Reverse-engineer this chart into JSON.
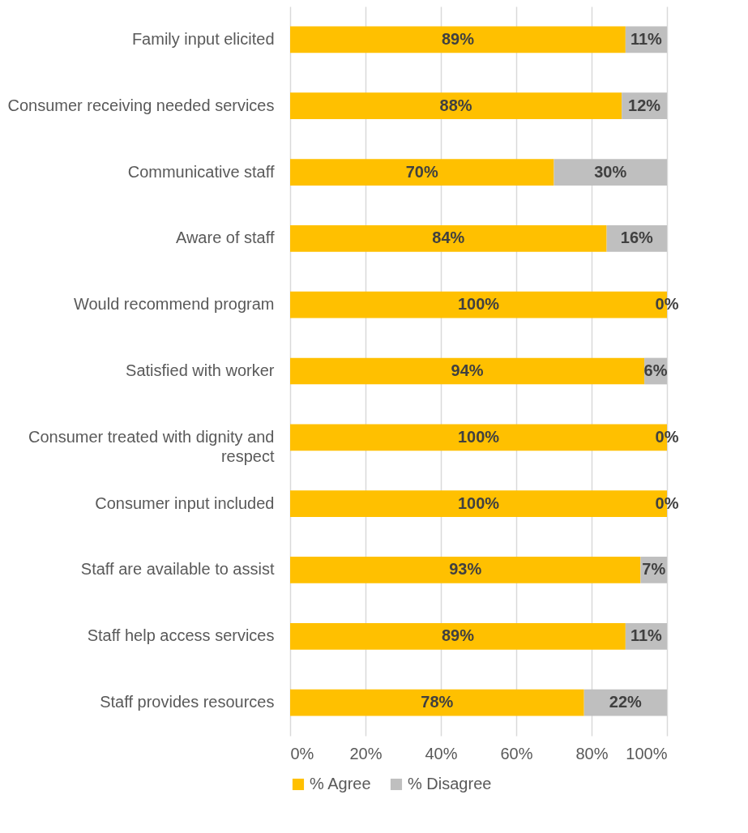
{
  "chart_data": {
    "type": "bar",
    "orientation": "horizontal",
    "stacked": true,
    "categories": [
      "Family input elicited",
      "Consumer receiving needed services",
      "Communicative staff",
      "Aware of staff",
      "Would recommend program",
      "Satisfied with worker",
      "Consumer treated with dignity and respect",
      "Consumer input included",
      "Staff are available to assist",
      "Staff help access services",
      "Staff provides resources"
    ],
    "series": [
      {
        "name": "% Agree",
        "color": "#ffc000",
        "values": [
          89,
          88,
          70,
          84,
          100,
          94,
          100,
          100,
          93,
          89,
          78
        ],
        "value_labels": [
          "89%",
          "88%",
          "70%",
          "84%",
          "100%",
          "94%",
          "100%",
          "100%",
          "93%",
          "89%",
          "78%"
        ]
      },
      {
        "name": "% Disagree",
        "color": "#bfbfbf",
        "values": [
          11,
          12,
          30,
          16,
          0,
          6,
          0,
          0,
          7,
          11,
          22
        ],
        "value_labels": [
          "11%",
          "12%",
          "30%",
          "16%",
          "0%",
          "6%",
          "0%",
          "0%",
          "7%",
          "11%",
          "22%"
        ]
      }
    ],
    "xlim": [
      0,
      100
    ],
    "xticks": [
      {
        "value": 0,
        "label": "0%"
      },
      {
        "value": 20,
        "label": "20%"
      },
      {
        "value": 40,
        "label": "40%"
      },
      {
        "value": 60,
        "label": "60%"
      },
      {
        "value": 80,
        "label": "80%"
      },
      {
        "value": 100,
        "label": "100%"
      }
    ],
    "grid": "x",
    "legend": "bottom"
  }
}
